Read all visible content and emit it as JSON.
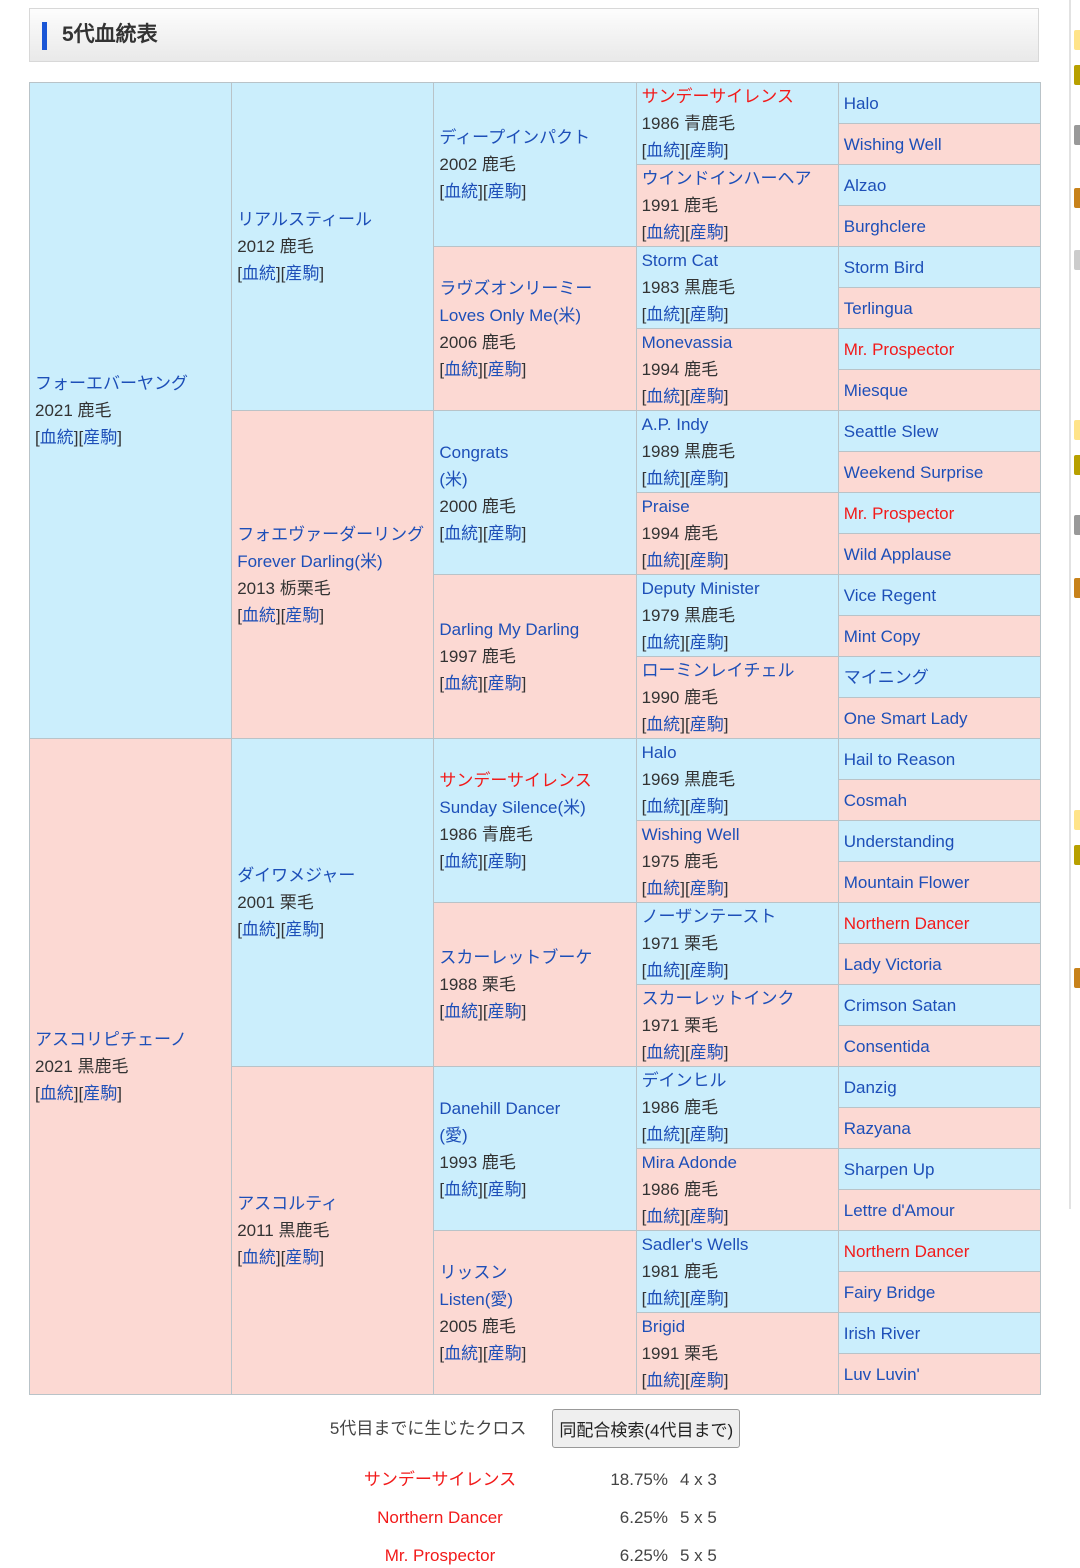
{
  "section_title": "5代血統表",
  "link_labels": [
    "血統",
    "産駒"
  ],
  "colors": {
    "male_bg": "#cbeefc",
    "female_bg": "#fcd9d3",
    "link": "#1d4fb8",
    "cross": "#f21a1a",
    "accent": "#1a56d6"
  },
  "pedigree": {
    "gen1": [
      {
        "name": "フォーエバーヤング",
        "info": "2021 鹿毛"
      },
      {
        "name": "アスコリピチェーノ",
        "info": "2021 黒鹿毛"
      }
    ],
    "gen2": [
      {
        "name": "リアルスティール",
        "info": "2012 鹿毛"
      },
      {
        "name": "フォエヴァーダーリング",
        "alt": "Forever Darling(米)",
        "info": "2013 栃栗毛"
      },
      {
        "name": "ダイワメジャー",
        "info": "2001 栗毛"
      },
      {
        "name": "アスコルティ",
        "info": "2011 黒鹿毛"
      }
    ],
    "gen3": [
      {
        "name": "ディープインパクト",
        "info": "2002 鹿毛"
      },
      {
        "name": "ラヴズオンリーミー",
        "alt": "Loves Only Me(米)",
        "info": "2006 鹿毛"
      },
      {
        "name": "Congrats",
        "alt": "(米)",
        "info": "2000 鹿毛"
      },
      {
        "name": "Darling My Darling",
        "info": "1997 鹿毛"
      },
      {
        "name": "サンデーサイレンス",
        "alt": "Sunday Silence(米)",
        "info": "1986 青鹿毛",
        "cross": true
      },
      {
        "name": "スカーレットブーケ",
        "info": "1988 栗毛"
      },
      {
        "name": "Danehill Dancer",
        "alt": "(愛)",
        "info": "1993 鹿毛"
      },
      {
        "name": "リッスン",
        "alt": "Listen(愛)",
        "info": "2005 鹿毛"
      }
    ],
    "gen4": [
      {
        "name": "サンデーサイレンス",
        "info": "1986 青鹿毛",
        "cross": true
      },
      {
        "name": "ウインドインハーヘア",
        "info": "1991 鹿毛"
      },
      {
        "name": "Storm Cat",
        "info": "1983 黒鹿毛"
      },
      {
        "name": "Monevassia",
        "info": "1994 鹿毛"
      },
      {
        "name": "A.P. Indy",
        "info": "1989 黒鹿毛"
      },
      {
        "name": "Praise",
        "info": "1994 鹿毛"
      },
      {
        "name": "Deputy Minister",
        "info": "1979 黒鹿毛"
      },
      {
        "name": "ローミンレイチェル",
        "info": "1990 鹿毛"
      },
      {
        "name": "Halo",
        "info": "1969 黒鹿毛"
      },
      {
        "name": "Wishing Well",
        "info": "1975 鹿毛"
      },
      {
        "name": "ノーザンテースト",
        "info": "1971 栗毛"
      },
      {
        "name": "スカーレットインク",
        "info": "1971 栗毛"
      },
      {
        "name": "デインヒル",
        "info": "1986 鹿毛"
      },
      {
        "name": "Mira Adonde",
        "info": "1986 鹿毛"
      },
      {
        "name": "Sadler's Wells",
        "info": "1981 鹿毛"
      },
      {
        "name": "Brigid",
        "info": "1991 栗毛"
      }
    ],
    "gen5": [
      {
        "name": "Halo"
      },
      {
        "name": "Wishing Well"
      },
      {
        "name": "Alzao"
      },
      {
        "name": "Burghclere"
      },
      {
        "name": "Storm Bird"
      },
      {
        "name": "Terlingua"
      },
      {
        "name": "Mr. Prospector",
        "cross": true
      },
      {
        "name": "Miesque"
      },
      {
        "name": "Seattle Slew"
      },
      {
        "name": "Weekend Surprise"
      },
      {
        "name": "Mr. Prospector",
        "cross": true
      },
      {
        "name": "Wild Applause"
      },
      {
        "name": "Vice Regent"
      },
      {
        "name": "Mint Copy"
      },
      {
        "name": "マイニング"
      },
      {
        "name": "One Smart Lady"
      },
      {
        "name": "Hail to Reason"
      },
      {
        "name": "Cosmah"
      },
      {
        "name": "Understanding"
      },
      {
        "name": "Mountain Flower"
      },
      {
        "name": "Northern Dancer",
        "cross": true
      },
      {
        "name": "Lady Victoria"
      },
      {
        "name": "Crimson Satan"
      },
      {
        "name": "Consentida"
      },
      {
        "name": "Danzig"
      },
      {
        "name": "Razyana"
      },
      {
        "name": "Sharpen Up"
      },
      {
        "name": "Lettre d'Amour"
      },
      {
        "name": "Northern Dancer",
        "cross": true
      },
      {
        "name": "Fairy Bridge"
      },
      {
        "name": "Irish River"
      },
      {
        "name": "Luv Luvin'"
      }
    ]
  },
  "crosses_label": "5代目までに生じたクロス",
  "search_button": "同配合検索(4代目まで)",
  "crosses": [
    {
      "name": "サンデーサイレンス",
      "percent": "18.75%",
      "pattern": "4 x 3"
    },
    {
      "name": "Northern Dancer",
      "percent": "6.25%",
      "pattern": "5 x 5"
    },
    {
      "name": "Mr. Prospector",
      "percent": "6.25%",
      "pattern": "5 x 5"
    }
  ]
}
